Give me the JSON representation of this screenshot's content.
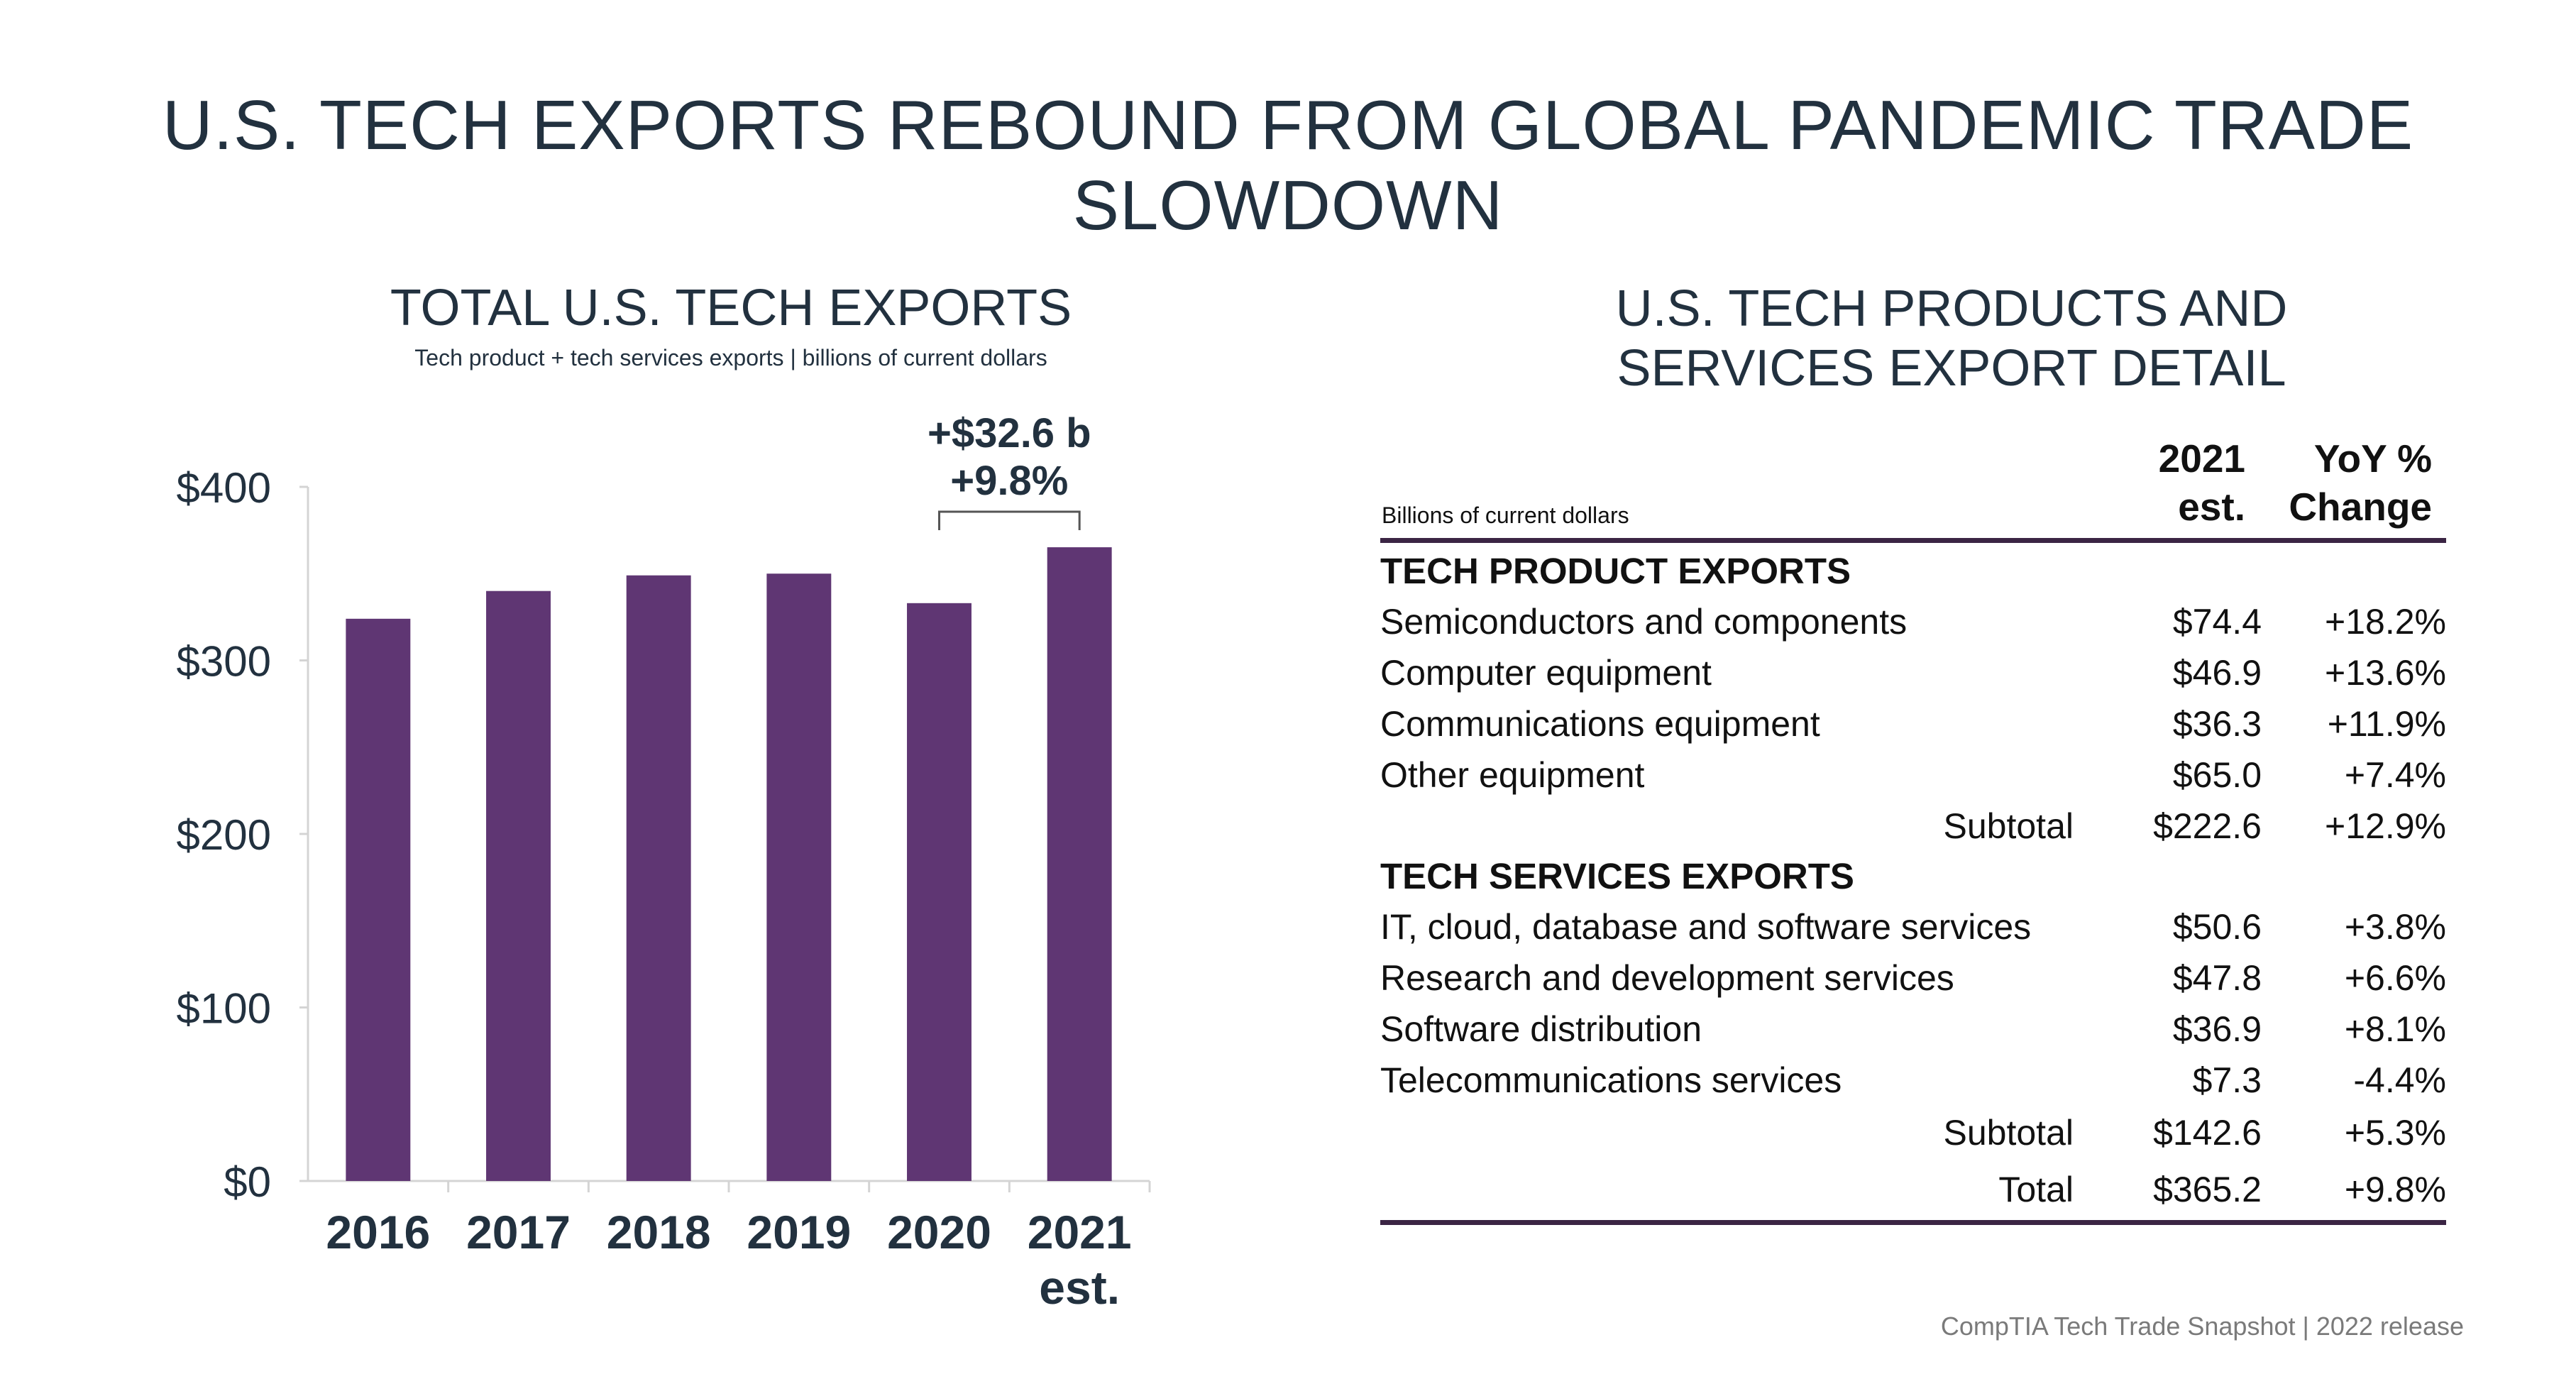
{
  "title": "U.S. TECH EXPORTS REBOUND FROM GLOBAL PANDEMIC TRADE SLOWDOWN",
  "chart_data": {
    "type": "bar",
    "title": "TOTAL U.S. TECH EXPORTS",
    "subtitle": "Tech product + tech services exports | billions of current dollars",
    "categories": [
      "2016",
      "2017",
      "2018",
      "2019",
      "2020",
      "2021 est."
    ],
    "values": [
      324,
      340,
      349,
      350,
      333,
      365.2
    ],
    "ylim": [
      0,
      400
    ],
    "y_ticks": [
      "$0",
      "$100",
      "$200",
      "$300",
      "$400"
    ],
    "y_tick_values": [
      0,
      100,
      200,
      300,
      400
    ],
    "bar_color": "#5f3673",
    "annotation": {
      "line1": "+$32.6 b",
      "line2": "+9.8%",
      "from_category": "2020",
      "to_category": "2021 est."
    },
    "grid": false
  },
  "table": {
    "title_line1": "U.S. TECH PRODUCTS AND",
    "title_line2": "SERVICES  EXPORT DETAIL",
    "units": "Billions of current dollars",
    "col_value_line1": "2021",
    "col_value_line2": "est.",
    "col_change_line1": "YoY %",
    "col_change_line2": "Change",
    "product_header": "TECH PRODUCT EXPORTS",
    "products": [
      {
        "label": "Semiconductors and components",
        "value": "$74.4",
        "change": "+18.2%"
      },
      {
        "label": "Computer equipment",
        "value": "$46.9",
        "change": "+13.6%"
      },
      {
        "label": "Communications equipment",
        "value": "$36.3",
        "change": "+11.9%"
      },
      {
        "label": "Other equipment",
        "value": "$65.0",
        "change": "+7.4%"
      }
    ],
    "product_subtotal": {
      "label": "Subtotal",
      "value": "$222.6",
      "change": "+12.9%"
    },
    "services_header": "TECH SERVICES EXPORTS",
    "services": [
      {
        "label": "IT, cloud, database and software services",
        "value": "$50.6",
        "change": "+3.8%"
      },
      {
        "label": "Research and development services",
        "value": "$47.8",
        "change": "+6.6%"
      },
      {
        "label": "Software distribution",
        "value": "$36.9",
        "change": "+8.1%"
      },
      {
        "label": "Telecommunications services",
        "value": "$7.3",
        "change": "-4.4%"
      }
    ],
    "services_subtotal": {
      "label": "Subtotal",
      "value": "$142.6",
      "change": "+5.3%"
    },
    "total": {
      "label": "Total",
      "value": "$365.2",
      "change": "+9.8%"
    },
    "rule_color": "#3b2544"
  },
  "source": "CompTIA Tech Trade Snapshot | 2022 release"
}
